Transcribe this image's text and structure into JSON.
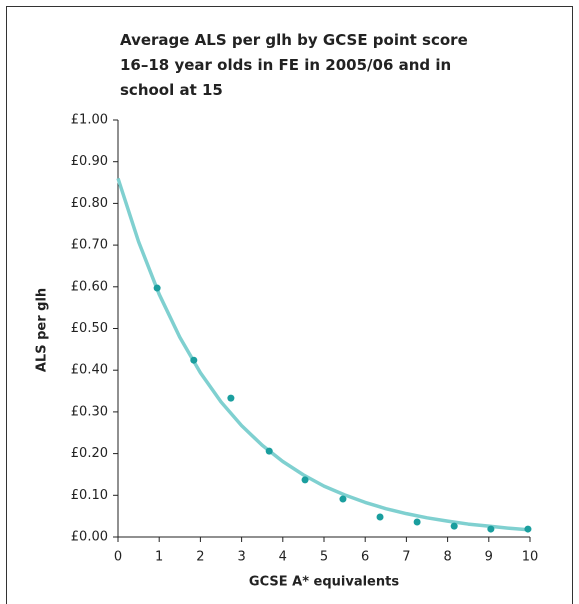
{
  "chart_data": {
    "type": "scatter",
    "title": [
      "Average ALS per glh by GCSE point score",
      "16–18 year olds in FE in 2005/06 and in",
      "school at 15"
    ],
    "xlabel": "GCSE A* equivalents",
    "ylabel": "ALS per glh",
    "xlim": [
      0,
      10
    ],
    "xticks": [
      0,
      1,
      2,
      3,
      4,
      5,
      6,
      7,
      8,
      9,
      10
    ],
    "ylim": [
      0,
      1
    ],
    "yticks": [
      {
        "value": 0,
        "label": "£0.00"
      },
      {
        "value": 0.1,
        "label": "£0.10"
      },
      {
        "value": 0.2,
        "label": "£0.20"
      },
      {
        "value": 0.3,
        "label": "£0.30"
      },
      {
        "value": 0.4,
        "label": "£0.40"
      },
      {
        "value": 0.5,
        "label": "£0.50"
      },
      {
        "value": 0.6,
        "label": "£0.60"
      },
      {
        "value": 0.7,
        "label": "£0.70"
      },
      {
        "value": 0.8,
        "label": "£0.80"
      },
      {
        "value": 0.9,
        "label": "£0.90"
      },
      {
        "value": 1,
        "label": "£1.00"
      }
    ],
    "series": [
      {
        "type": "line",
        "color": "#7fd0d0",
        "x": [
          0,
          0.5,
          1,
          1.5,
          2,
          2.5,
          3,
          3.5,
          4,
          4.5,
          5,
          5.5,
          6,
          6.5,
          7,
          7.5,
          8,
          8.5,
          9,
          9.5,
          10
        ],
        "values": [
          0.86,
          0.708,
          0.582,
          0.479,
          0.394,
          0.324,
          0.267,
          0.22,
          0.181,
          0.149,
          0.122,
          0.101,
          0.083,
          0.068,
          0.056,
          0.046,
          0.038,
          0.031,
          0.026,
          0.021,
          0.017
        ]
      },
      {
        "type": "scatter",
        "color": "#1a9e9e",
        "x": [
          0.95,
          1.84,
          2.74,
          3.67,
          4.54,
          5.46,
          6.36,
          7.26,
          8.16,
          9.05,
          9.95
        ],
        "values": [
          0.597,
          0.424,
          0.333,
          0.206,
          0.137,
          0.091,
          0.048,
          0.036,
          0.026,
          0.019,
          0.019
        ]
      }
    ]
  }
}
